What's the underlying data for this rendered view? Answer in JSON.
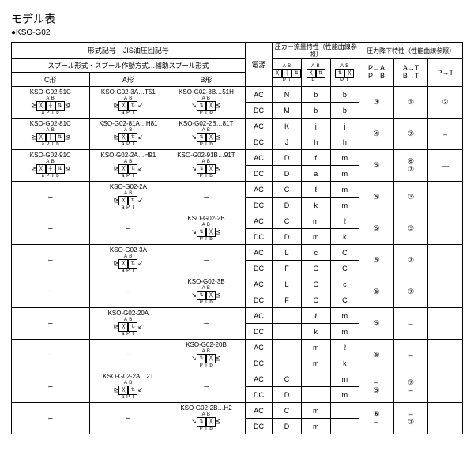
{
  "title": "モデル表",
  "subtitle": "●KSO-G02",
  "headers": {
    "model_code": "形式記号　JIS油圧回記号",
    "spool_line": "スプール形式・スプール作動方式…補助スプール形式",
    "c_form": "C形",
    "a_form": "A形",
    "b_form": "B形",
    "power": "電源",
    "press_flow": "圧カー流量特性（性能曲線参照）",
    "press_drop": "圧力降下特性（性能曲線参照）",
    "pa_pb": "P→A\nP→B",
    "at_bt": "A→T\nB→T",
    "pt": "P→T"
  },
  "hdr_syms": {
    "h1": "A B",
    "h2": "A B",
    "h3": "A B",
    "p": "P T"
  },
  "blocks": [
    {
      "c": "KSO-G02-51C",
      "a": "KSO-G02-3A…T51",
      "b": "KSO-G02-3B…51H",
      "rows": [
        {
          "pw": "AC",
          "s1": "N",
          "s2": "b",
          "s3": "b"
        },
        {
          "pw": "DC",
          "s1": "M",
          "s2": "b",
          "s3": "b"
        }
      ],
      "d1": "③",
      "d2": "①",
      "d3": "②"
    },
    {
      "c": "KSO-G02-81C",
      "a": "KSO-G02-81A…H81",
      "b": "KSO-G02-2B…81T",
      "rows": [
        {
          "pw": "AC",
          "s1": "K",
          "s2": "j",
          "s3": "j"
        },
        {
          "pw": "DC",
          "s1": "J",
          "s2": "h",
          "s3": "h"
        }
      ],
      "d1": "④",
      "d2": "⑦",
      "d3": "–"
    },
    {
      "c": "KSO-G02-91C",
      "a": "KSO-G02-2A…H91",
      "b": "KSO-G02-91B…91T",
      "rows": [
        {
          "pw": "AC",
          "s1": "D",
          "s2": "f",
          "s3": "m"
        },
        {
          "pw": "DC",
          "s1": "D",
          "s2": "a",
          "s3": "m"
        }
      ],
      "d1": "⑤",
      "d2": "⑥\n⑦",
      "d3": "—"
    },
    {
      "c": "–",
      "a": "KSO-G02-2A",
      "b": "–",
      "rows": [
        {
          "pw": "AC",
          "s1": "C",
          "s2": "ℓ",
          "s3": "m"
        },
        {
          "pw": "DC",
          "s1": "D",
          "s2": "k",
          "s3": "m"
        }
      ],
      "d1": "⑤",
      "d2": "③",
      "d3": ""
    },
    {
      "c": "–",
      "a": "–",
      "b": "KSO-G02-2B",
      "rows": [
        {
          "pw": "AC",
          "s1": "C",
          "s2": "m",
          "s3": "ℓ"
        },
        {
          "pw": "DC",
          "s1": "D",
          "s2": "m",
          "s3": "k"
        }
      ],
      "d1": "⑤",
      "d2": "③",
      "d3": ""
    },
    {
      "c": "–",
      "a": "KSO-G02-3A",
      "b": "–",
      "rows": [
        {
          "pw": "AC",
          "s1": "L",
          "s2": "c",
          "s3": "C"
        },
        {
          "pw": "DC",
          "s1": "F",
          "s2": "C",
          "s3": "C"
        }
      ],
      "d1": "⑤",
      "d2": "⑦",
      "d3": ""
    },
    {
      "c": "–",
      "a": "–",
      "b": "KSO-G02-3B",
      "rows": [
        {
          "pw": "AC",
          "s1": "L",
          "s2": "C",
          "s3": "c"
        },
        {
          "pw": "DC",
          "s1": "F",
          "s2": "C",
          "s3": "C"
        }
      ],
      "d1": "⑤",
      "d2": "⑦",
      "d3": ""
    },
    {
      "c": "–",
      "a": "KSO-G02-20A",
      "b": "–",
      "rows": [
        {
          "pw": "AC",
          "s1": "",
          "s2": "ℓ",
          "s3": "m"
        },
        {
          "pw": "DC",
          "s1": "",
          "s2": "k",
          "s3": "m"
        }
      ],
      "d1": "⑤",
      "d2": "–",
      "d3": ""
    },
    {
      "c": "–",
      "a": "–",
      "b": "KSO-G02-20B",
      "rows": [
        {
          "pw": "AC",
          "s1": "",
          "s2": "m",
          "s3": "ℓ"
        },
        {
          "pw": "DC",
          "s1": "",
          "s2": "m",
          "s3": "k"
        }
      ],
      "d1": "⑤",
      "d2": "–",
      "d3": ""
    },
    {
      "c": "–",
      "a": "KSO-G02-2A…2T",
      "b": "–",
      "rows": [
        {
          "pw": "AC",
          "s1": "C",
          "s2": "",
          "s3": "m"
        },
        {
          "pw": "DC",
          "s1": "D",
          "s2": "",
          "s3": "m"
        }
      ],
      "d1": "–\n⑤",
      "d2": "⑦\n–",
      "d3": ""
    },
    {
      "c": "–",
      "a": "–",
      "b": "KSO-G02-2B…H2",
      "rows": [
        {
          "pw": "AC",
          "s1": "C",
          "s2": "m",
          "s3": ""
        },
        {
          "pw": "DC",
          "s1": "D",
          "s2": "m",
          "s3": ""
        }
      ],
      "d1": "⑥\n–",
      "d2": "–\n⑦",
      "d3": ""
    }
  ]
}
